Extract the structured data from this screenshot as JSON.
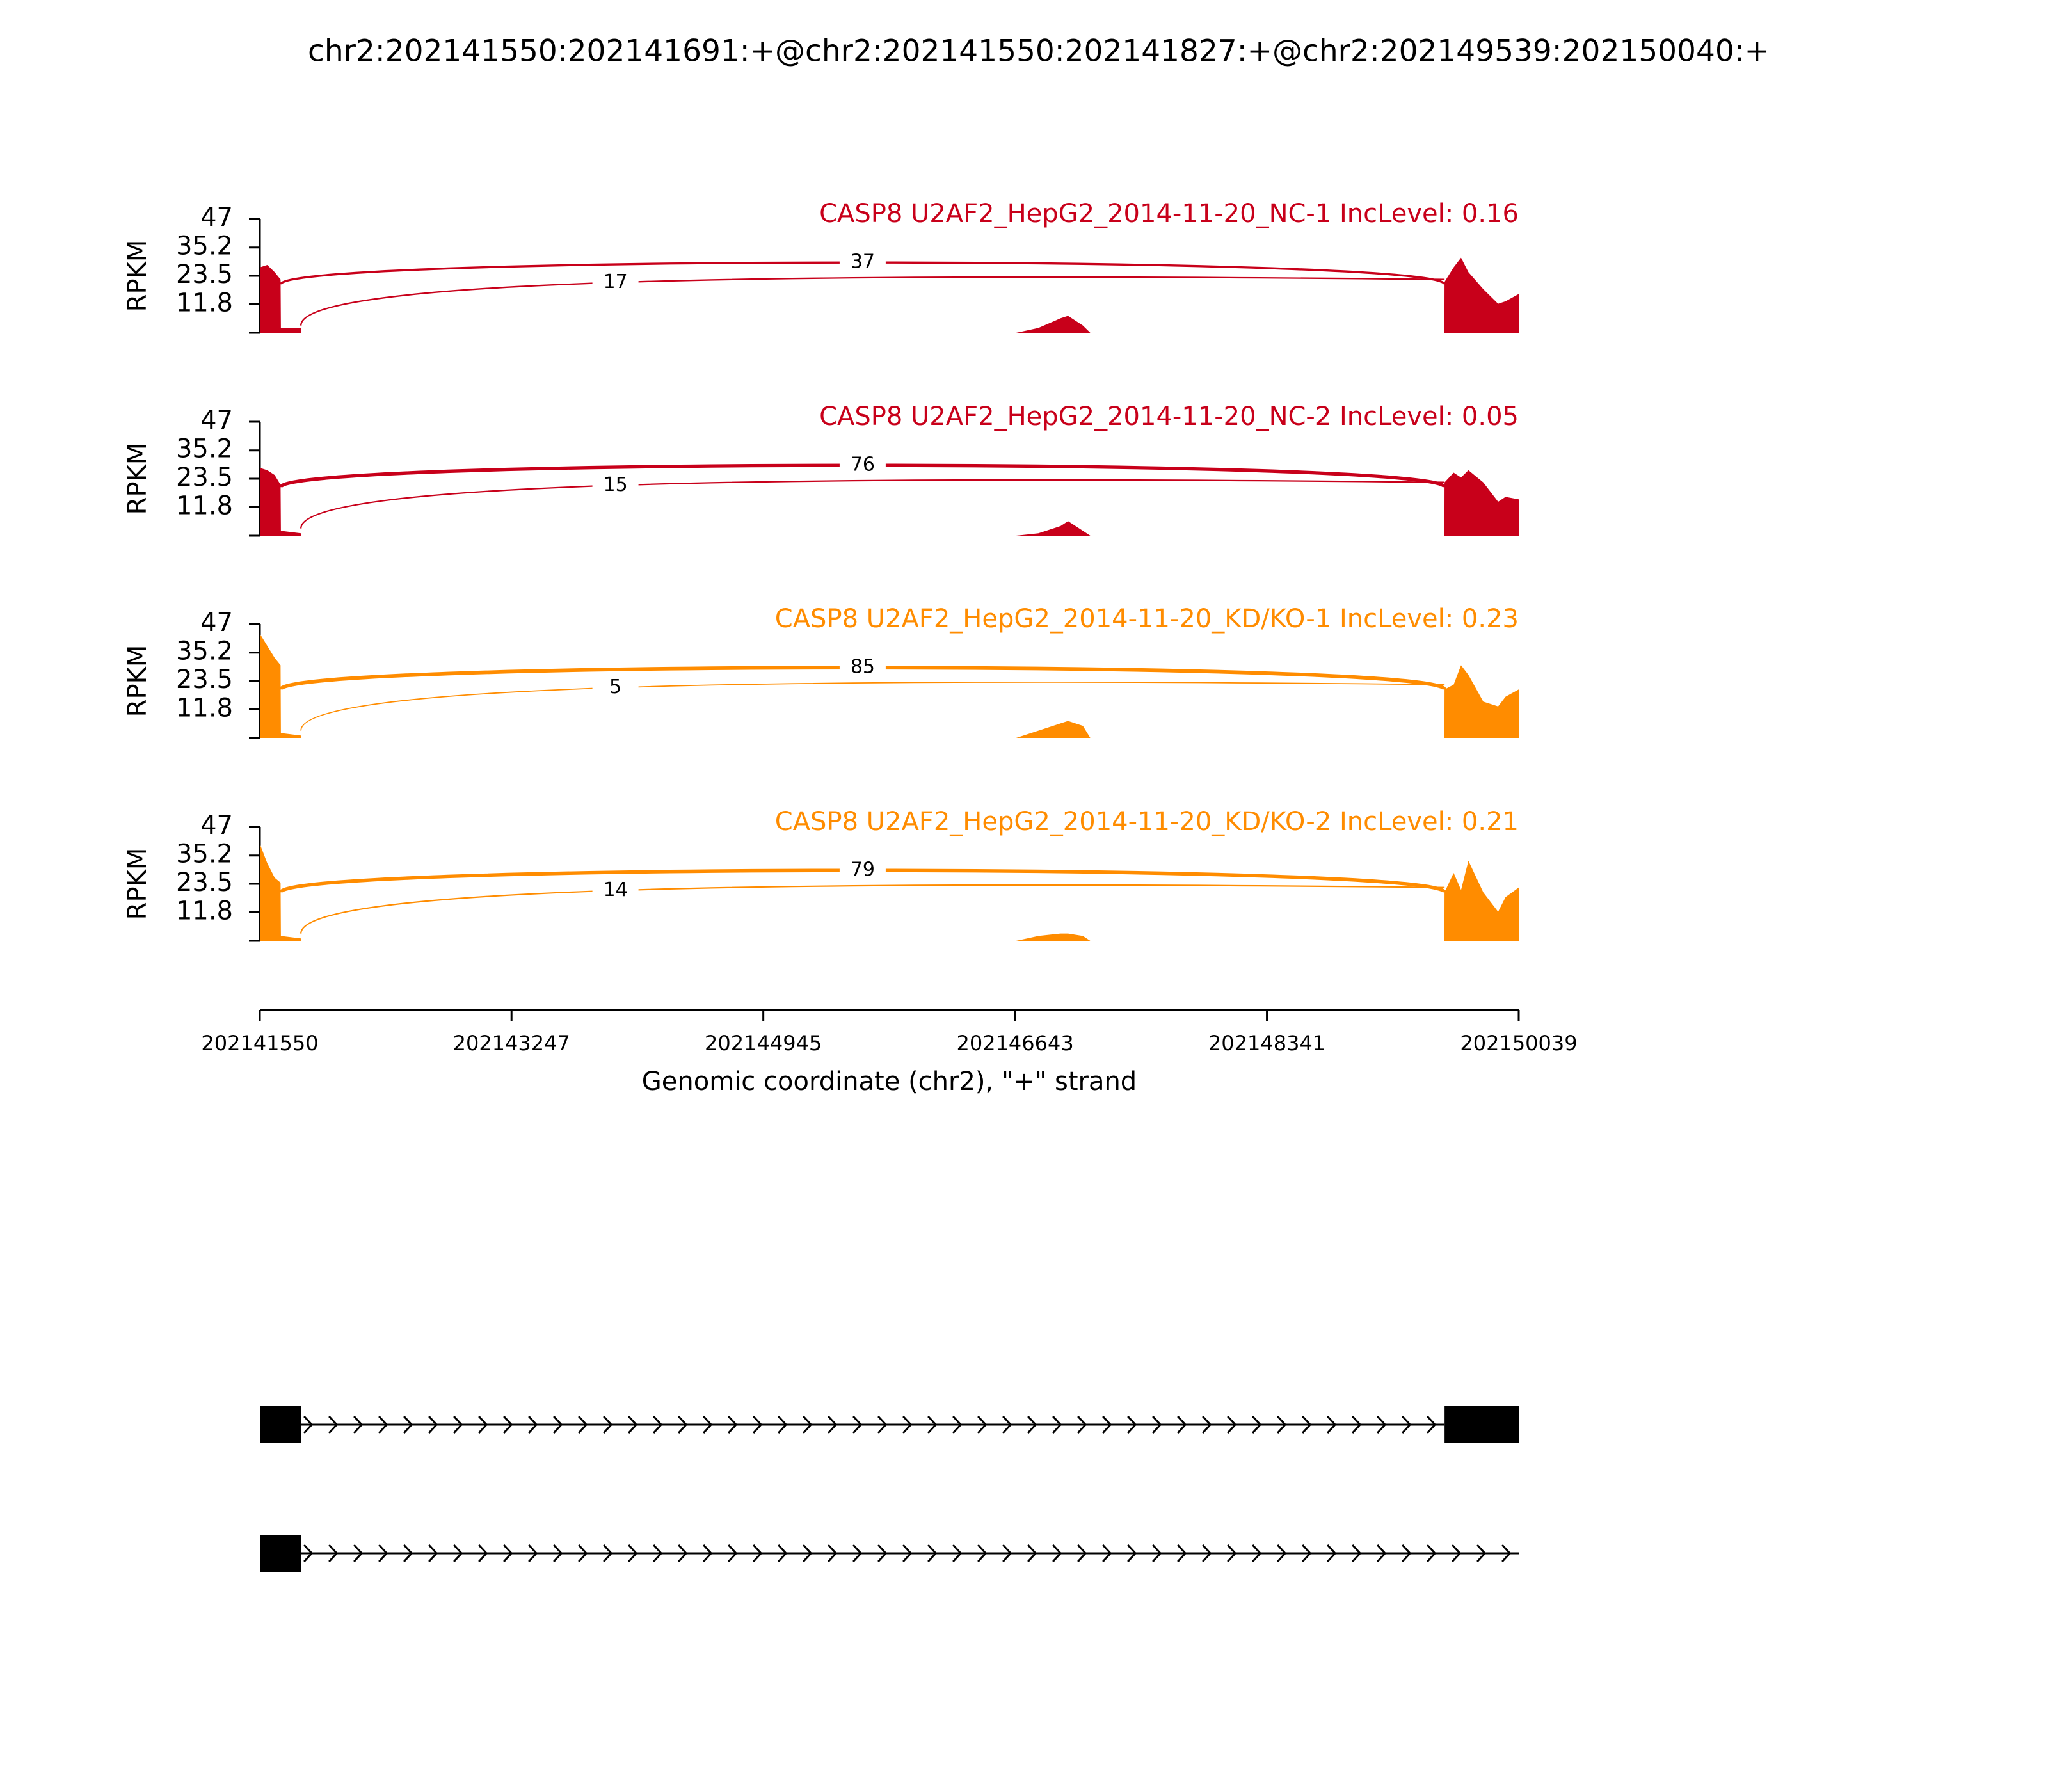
{
  "figure": {
    "title": "chr2:202141550:202141691:+@chr2:202141550:202141827:+@chr2:202149539:202150040:+",
    "xlabel": "Genomic coordinate (chr2), \"+\" strand",
    "xlim": [
      202141550,
      202150039
    ],
    "xticks": [
      202141550,
      202143247,
      202144945,
      202146643,
      202148341,
      202150039
    ]
  },
  "chart_data": [
    {
      "type": "area",
      "title": "CASP8 U2AF2_HepG2_2014-11-20_NC-1 IncLevel: 0.16",
      "ylabel": "RPKM",
      "color": "#c8001a",
      "ylim": [
        0,
        47
      ],
      "yticks": [
        11.8,
        23.5,
        35.2,
        47
      ],
      "x": [
        202141550,
        202141600,
        202141650,
        202141690,
        202141692,
        202141827,
        202141830,
        202146650,
        202146800,
        202146950,
        202147000,
        202147100,
        202147150,
        202149538,
        202149539,
        202149600,
        202149650,
        202149700,
        202149800,
        202149900,
        202149950,
        202150039
      ],
      "values": [
        27,
        28,
        25,
        22,
        2,
        2,
        0,
        0,
        2,
        6,
        7,
        3,
        0,
        0,
        21,
        27,
        31,
        25,
        18,
        12,
        13,
        16
      ],
      "junctions": [
        {
          "start": 202141691,
          "end": 202149539,
          "count": 37
        },
        {
          "start": 202141827,
          "end": 202149539,
          "count": 17
        }
      ]
    },
    {
      "type": "area",
      "title": "CASP8 U2AF2_HepG2_2014-11-20_NC-2 IncLevel: 0.05",
      "ylabel": "RPKM",
      "color": "#c8001a",
      "ylim": [
        0,
        47
      ],
      "yticks": [
        11.8,
        23.5,
        35.2,
        47
      ],
      "x": [
        202141550,
        202141600,
        202141650,
        202141690,
        202141692,
        202141827,
        202141830,
        202146650,
        202146800,
        202146950,
        202147000,
        202147100,
        202147150,
        202149538,
        202149539,
        202149600,
        202149650,
        202149700,
        202149800,
        202149900,
        202149950,
        202150039
      ],
      "values": [
        28,
        27,
        25,
        21,
        2,
        1,
        0,
        0,
        1,
        4,
        6,
        2,
        0,
        0,
        22,
        26,
        24,
        27,
        22,
        14,
        16,
        15
      ],
      "junctions": [
        {
          "start": 202141691,
          "end": 202149539,
          "count": 76
        },
        {
          "start": 202141827,
          "end": 202149539,
          "count": 15
        }
      ]
    },
    {
      "type": "area",
      "title": "CASP8 U2AF2_HepG2_2014-11-20_KD/KO-1 IncLevel: 0.23",
      "ylabel": "RPKM",
      "color": "#ff8c00",
      "ylim": [
        0,
        47
      ],
      "yticks": [
        11.8,
        23.5,
        35.2,
        47
      ],
      "x": [
        202141550,
        202141600,
        202141650,
        202141690,
        202141692,
        202141827,
        202141830,
        202146650,
        202146800,
        202146950,
        202147000,
        202147100,
        202147150,
        202149538,
        202149539,
        202149600,
        202149650,
        202149700,
        202149800,
        202149900,
        202149950,
        202150039
      ],
      "values": [
        43,
        38,
        33,
        30,
        2,
        1,
        0,
        0,
        3,
        6,
        7,
        5,
        0,
        0,
        20,
        22,
        30,
        26,
        15,
        13,
        17,
        20
      ],
      "junctions": [
        {
          "start": 202141691,
          "end": 202149539,
          "count": 85
        },
        {
          "start": 202141827,
          "end": 202149539,
          "count": 5
        }
      ]
    },
    {
      "type": "area",
      "title": "CASP8 U2AF2_HepG2_2014-11-20_KD/KO-2 IncLevel: 0.21",
      "ylabel": "RPKM",
      "color": "#ff8c00",
      "ylim": [
        0,
        47
      ],
      "yticks": [
        11.8,
        23.5,
        35.2,
        47
      ],
      "x": [
        202141550,
        202141600,
        202141650,
        202141690,
        202141692,
        202141827,
        202141830,
        202146650,
        202146800,
        202146950,
        202147000,
        202147100,
        202147150,
        202149538,
        202149539,
        202149600,
        202149650,
        202149700,
        202149800,
        202149900,
        202149950,
        202150039
      ],
      "values": [
        40,
        32,
        26,
        24,
        2,
        1,
        0,
        0,
        2,
        3,
        3,
        2,
        0,
        0,
        20,
        28,
        21,
        33,
        20,
        12,
        18,
        22
      ],
      "junctions": [
        {
          "start": 202141691,
          "end": 202149539,
          "count": 79
        },
        {
          "start": 202141827,
          "end": 202149539,
          "count": 14
        }
      ]
    }
  ],
  "transcripts": [
    {
      "exons": [
        [
          202141550,
          202141827
        ],
        [
          202149539,
          202150040
        ]
      ]
    },
    {
      "exons": [
        [
          202141550,
          202141827
        ]
      ]
    }
  ]
}
